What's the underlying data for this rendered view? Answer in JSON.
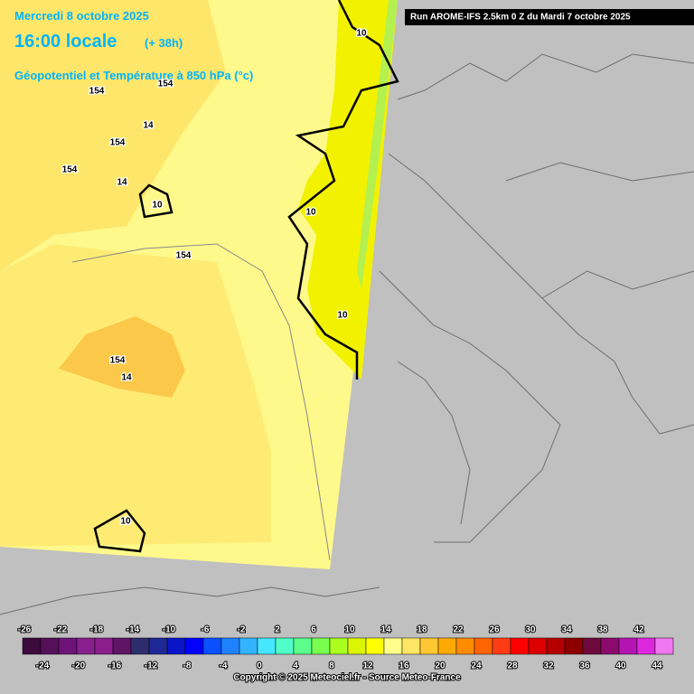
{
  "header": {
    "date": "Mercredi 8 octobre 2025",
    "time": "16:00 locale",
    "offset": "(+ 38h)",
    "parameter": "Géopotentiel et Température à 850 hPa (°c)",
    "run": "Run AROME-IFS 2.5km 0 Z du Mardi 7 octobre 2025"
  },
  "contour_labels": [
    "10",
    "154",
    "154",
    "14",
    "154",
    "154",
    "14",
    "10",
    "10",
    "154",
    "10",
    "154",
    "14",
    "10"
  ],
  "legend": {
    "items": [
      {
        "value": -26,
        "color": "#3c0a3c"
      },
      {
        "value": -24,
        "color": "#55105a"
      },
      {
        "value": -22,
        "color": "#6e1478"
      },
      {
        "value": -20,
        "color": "#87208e"
      },
      {
        "value": -18,
        "color": "#8c1e8c"
      },
      {
        "value": -16,
        "color": "#5f1464"
      },
      {
        "value": -14,
        "color": "#2d2d6e"
      },
      {
        "value": -12,
        "color": "#1e2896"
      },
      {
        "value": -10,
        "color": "#0a14c8"
      },
      {
        "value": -8,
        "color": "#0000ff"
      },
      {
        "value": -6,
        "color": "#0a50ff"
      },
      {
        "value": -4,
        "color": "#1e82ff"
      },
      {
        "value": -2,
        "color": "#32b4ff"
      },
      {
        "value": 0,
        "color": "#46e6ff"
      },
      {
        "value": 2,
        "color": "#50ffc8"
      },
      {
        "value": 4,
        "color": "#5aff8c"
      },
      {
        "value": 6,
        "color": "#78ff50"
      },
      {
        "value": 8,
        "color": "#aaff1e"
      },
      {
        "value": 10,
        "color": "#dcf500"
      },
      {
        "value": 12,
        "color": "#ffff00"
      },
      {
        "value": 14,
        "color": "#ffff8c"
      },
      {
        "value": 16,
        "color": "#ffe664"
      },
      {
        "value": 18,
        "color": "#ffc832"
      },
      {
        "value": 20,
        "color": "#ffaa00"
      },
      {
        "value": 22,
        "color": "#ff8c00"
      },
      {
        "value": 24,
        "color": "#ff6400"
      },
      {
        "value": 26,
        "color": "#ff3c14"
      },
      {
        "value": 28,
        "color": "#ff0000"
      },
      {
        "value": 30,
        "color": "#dc0000"
      },
      {
        "value": 32,
        "color": "#b40000"
      },
      {
        "value": 34,
        "color": "#8c0000"
      },
      {
        "value": 36,
        "color": "#6e0a3c"
      },
      {
        "value": 38,
        "color": "#8c0a6e"
      },
      {
        "value": 40,
        "color": "#b414b4"
      },
      {
        "value": 42,
        "color": "#dc28dc"
      },
      {
        "value": 44,
        "color": "#f078f0"
      }
    ]
  },
  "footer": {
    "copyright": "Copyright © 2025 Meteociel.fr - Source Meteo-France"
  }
}
